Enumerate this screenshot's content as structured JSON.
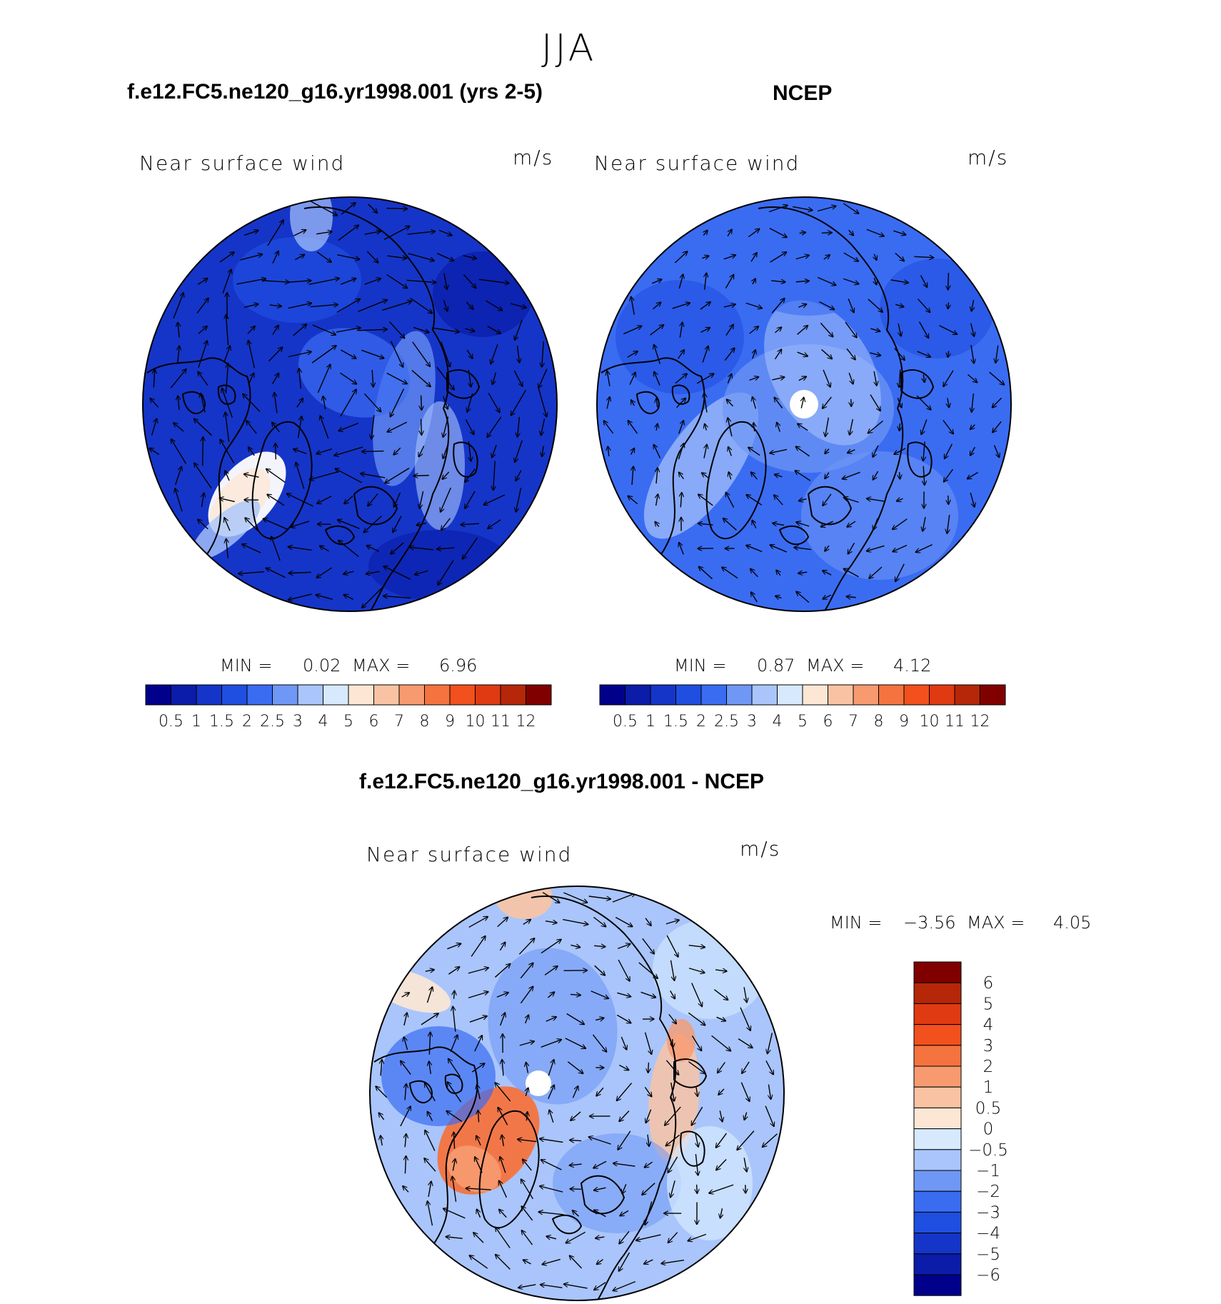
{
  "figure": {
    "season": "JJA"
  },
  "panels": [
    {
      "id": "model",
      "title": "f.e12.FC5.ne120_g16.yr1998.001 (yrs 2-5)",
      "variable": "Near surface wind",
      "units": "m/s",
      "min_label": "MIN =",
      "min_value": "0.02",
      "max_label": "MAX =",
      "max_value": "6.96"
    },
    {
      "id": "obs",
      "title": "NCEP",
      "variable": "Near surface wind",
      "units": "m/s",
      "min_label": "MIN =",
      "min_value": "0.87",
      "max_label": "MAX =",
      "max_value": "4.12"
    },
    {
      "id": "diff",
      "title": "f.e12.FC5.ne120_g16.yr1998.001 - NCEP",
      "variable": "Near surface wind",
      "units": "m/s",
      "min_label": "MIN =",
      "min_value": "−3.56",
      "max_label": "MAX =",
      "max_value": "4.05"
    }
  ],
  "colorbars": {
    "speed": {
      "colors": [
        "#00008b",
        "#0a1ca8",
        "#1535c8",
        "#1f4fe0",
        "#3a6cf2",
        "#6f97f5",
        "#a9c5fb",
        "#d6e9fd",
        "#fde7d4",
        "#f9c3a3",
        "#f79a70",
        "#f4733f",
        "#f2501d",
        "#df3a12",
        "#b52708",
        "#800000"
      ],
      "tick_labels": [
        "0.5",
        "1",
        "1.5",
        "2",
        "2.5",
        "3",
        "4",
        "5",
        "6",
        "7",
        "8",
        "9",
        "10",
        "11",
        "12"
      ]
    },
    "diff": {
      "colors": [
        "#800000",
        "#b52708",
        "#df3a12",
        "#f2501d",
        "#f4733f",
        "#f79a70",
        "#f9c3a3",
        "#fde7d4",
        "#d6e9fd",
        "#a9c5fb",
        "#6f97f5",
        "#3a6cf2",
        "#1f4fe0",
        "#1535c8",
        "#0a1ca8",
        "#00008b"
      ],
      "tick_labels": [
        "6",
        "5",
        "4",
        "3",
        "2",
        "1",
        "0.5",
        "0",
        "−0.5",
        "−1",
        "−2",
        "−3",
        "−4",
        "−5",
        "−6"
      ]
    }
  },
  "map_colors": {
    "model_base": "#1535c8",
    "obs_base": "#3a6cf2",
    "diff_base": "#a9c5fb"
  }
}
